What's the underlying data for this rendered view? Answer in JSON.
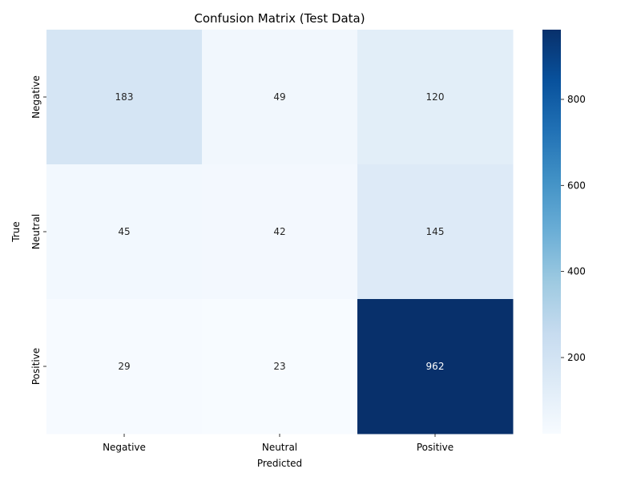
{
  "chart_data": {
    "type": "heatmap",
    "title": "Confusion Matrix (Test Data)",
    "xlabel": "Predicted",
    "ylabel": "True",
    "x_categories": [
      "Negative",
      "Neutral",
      "Positive"
    ],
    "y_categories": [
      "Negative",
      "Neutral",
      "Positive"
    ],
    "values": [
      [
        183,
        49,
        120
      ],
      [
        45,
        42,
        145
      ],
      [
        29,
        23,
        962
      ]
    ],
    "colormap": "Blues",
    "color_range": [
      23,
      962
    ],
    "colorbar_ticks": [
      200,
      400,
      600,
      800
    ]
  }
}
